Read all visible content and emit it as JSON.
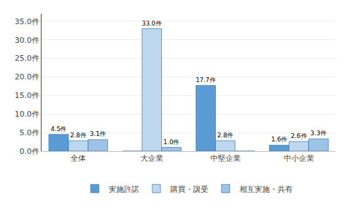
{
  "chart_data": {
    "type": "bar",
    "categories": [
      "全体",
      "大企業",
      "中堅企業",
      "中小企業"
    ],
    "series": [
      {
        "name": "実施許諾",
        "color": "#5B9BD5",
        "values": [
          4.5,
          0.0,
          17.7,
          1.6
        ],
        "value_labels": [
          "4.5件",
          null,
          "17.7件",
          "1.6件"
        ]
      },
      {
        "name": "購買・譲受",
        "color": "#BDD7EE",
        "values": [
          2.8,
          33.0,
          2.8,
          2.6
        ],
        "value_labels": [
          "2.8件",
          "33.0件",
          "2.8件",
          "2.6件"
        ]
      },
      {
        "name": "相互実施・共有",
        "color": "#9DC3E6",
        "values": [
          3.1,
          1.0,
          0.0,
          3.3
        ],
        "value_labels": [
          "3.1件",
          "1.0件",
          null,
          "3.3件"
        ]
      }
    ],
    "ylim": [
      0,
      37.0
    ],
    "yticks": [
      {
        "value": 0.0,
        "label": "0.0件"
      },
      {
        "value": 5.0,
        "label": "5.0件"
      },
      {
        "value": 10.0,
        "label": "10.0件"
      },
      {
        "value": 15.0,
        "label": "15.0件"
      },
      {
        "value": 20.0,
        "label": "20.0件"
      },
      {
        "value": 25.0,
        "label": "25.0件"
      },
      {
        "value": 30.0,
        "label": "30.0件"
      },
      {
        "value": 35.0,
        "label": "35.0件"
      }
    ],
    "grid": true,
    "legend": "bottom",
    "data_labels": true
  }
}
